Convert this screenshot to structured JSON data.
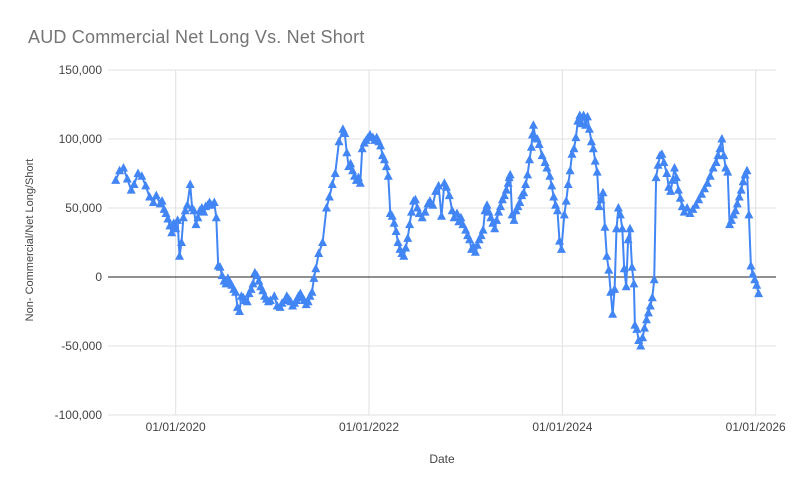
{
  "chart": {
    "title": "AUD Commercial Net Long Vs. Net Short",
    "xlabel": "Date",
    "ylabel": "Non- Commercial/Net Long/Short"
  },
  "colors": {
    "background": "#ffffff",
    "title": "#757575",
    "axis_label": "#444444",
    "grid": "#e0e0e0",
    "zero_line": "#212121",
    "series": "#4285f4"
  },
  "chart_data": {
    "type": "line",
    "marker": "triangle-up",
    "series_name": "Non-Commercial Net Long/Short",
    "series_color": "#4285f4",
    "title": "AUD Commercial Net Long Vs. Net Short",
    "xlabel": "Date",
    "ylabel": "Non- Commercial/Net Long/Short",
    "x_unit": "decimal_year",
    "grid": true,
    "legend": "none",
    "xlim": [
      2019.3,
      2026.21
    ],
    "ylim": [
      -100000,
      150000
    ],
    "x_ticks": [
      {
        "value": 2020,
        "label": "01/01/2020"
      },
      {
        "value": 2022,
        "label": "01/01/2022"
      },
      {
        "value": 2024,
        "label": "01/01/2024"
      },
      {
        "value": 2026,
        "label": "01/01/2026"
      }
    ],
    "y_ticks": [
      {
        "value": 150000,
        "label": "150,000"
      },
      {
        "value": 100000,
        "label": "100,000"
      },
      {
        "value": 50000,
        "label": "50,000"
      },
      {
        "value": 0,
        "label": "0"
      },
      {
        "value": -50000,
        "label": "-50,000"
      },
      {
        "value": -100000,
        "label": "-100,000"
      }
    ],
    "points": [
      [
        2019.38,
        70000
      ],
      [
        2019.42,
        77000
      ],
      [
        2019.46,
        79000
      ],
      [
        2019.5,
        71000
      ],
      [
        2019.54,
        63000
      ],
      [
        2019.57,
        67000
      ],
      [
        2019.61,
        75000
      ],
      [
        2019.65,
        73000
      ],
      [
        2019.69,
        66000
      ],
      [
        2019.73,
        58000
      ],
      [
        2019.77,
        54000
      ],
      [
        2019.8,
        59000
      ],
      [
        2019.84,
        53000
      ],
      [
        2019.86,
        55000
      ],
      [
        2019.88,
        49000
      ],
      [
        2019.9,
        46000
      ],
      [
        2019.92,
        42000
      ],
      [
        2019.94,
        37000
      ],
      [
        2019.96,
        32000
      ],
      [
        2019.98,
        39000
      ],
      [
        2020.0,
        35000
      ],
      [
        2020.02,
        41000
      ],
      [
        2020.04,
        15000
      ],
      [
        2020.06,
        25000
      ],
      [
        2020.08,
        43000
      ],
      [
        2020.1,
        48000
      ],
      [
        2020.12,
        52000
      ],
      [
        2020.15,
        67000
      ],
      [
        2020.17,
        50000
      ],
      [
        2020.19,
        48000
      ],
      [
        2020.21,
        38000
      ],
      [
        2020.23,
        43000
      ],
      [
        2020.25,
        48000
      ],
      [
        2020.27,
        50000
      ],
      [
        2020.29,
        47000
      ],
      [
        2020.31,
        51000
      ],
      [
        2020.33,
        52000
      ],
      [
        2020.35,
        54000
      ],
      [
        2020.37,
        52000
      ],
      [
        2020.4,
        54000
      ],
      [
        2020.42,
        43000
      ],
      [
        2020.44,
        8000
      ],
      [
        2020.46,
        7000
      ],
      [
        2020.48,
        1000
      ],
      [
        2020.5,
        -3000
      ],
      [
        2020.52,
        -5000
      ],
      [
        2020.54,
        -1000
      ],
      [
        2020.56,
        -4000
      ],
      [
        2020.58,
        -6000
      ],
      [
        2020.6,
        -9000
      ],
      [
        2020.62,
        -11000
      ],
      [
        2020.64,
        -22000
      ],
      [
        2020.66,
        -25000
      ],
      [
        2020.68,
        -14000
      ],
      [
        2020.7,
        -15000
      ],
      [
        2020.72,
        -17000
      ],
      [
        2020.74,
        -18000
      ],
      [
        2020.76,
        -12000
      ],
      [
        2020.78,
        -9000
      ],
      [
        2020.8,
        -5000
      ],
      [
        2020.82,
        3000
      ],
      [
        2020.84,
        1000
      ],
      [
        2020.86,
        -3000
      ],
      [
        2020.88,
        -7000
      ],
      [
        2020.9,
        -10000
      ],
      [
        2020.92,
        -14000
      ],
      [
        2020.94,
        -16000
      ],
      [
        2020.96,
        -18000
      ],
      [
        2020.98,
        -17000
      ],
      [
        2021.02,
        -14000
      ],
      [
        2021.05,
        -21000
      ],
      [
        2021.08,
        -22000
      ],
      [
        2021.1,
        -19000
      ],
      [
        2021.13,
        -17000
      ],
      [
        2021.15,
        -14000
      ],
      [
        2021.17,
        -16000
      ],
      [
        2021.19,
        -18000
      ],
      [
        2021.21,
        -21000
      ],
      [
        2021.23,
        -19000
      ],
      [
        2021.25,
        -17000
      ],
      [
        2021.27,
        -14000
      ],
      [
        2021.29,
        -12000
      ],
      [
        2021.31,
        -15000
      ],
      [
        2021.33,
        -17000
      ],
      [
        2021.35,
        -20000
      ],
      [
        2021.37,
        -18000
      ],
      [
        2021.39,
        -14000
      ],
      [
        2021.41,
        -11000
      ],
      [
        2021.43,
        -1000
      ],
      [
        2021.45,
        6000
      ],
      [
        2021.48,
        17000
      ],
      [
        2021.52,
        25000
      ],
      [
        2021.56,
        50000
      ],
      [
        2021.59,
        58000
      ],
      [
        2021.62,
        67000
      ],
      [
        2021.65,
        75000
      ],
      [
        2021.69,
        98000
      ],
      [
        2021.73,
        107000
      ],
      [
        2021.75,
        104000
      ],
      [
        2021.77,
        90000
      ],
      [
        2021.79,
        80000
      ],
      [
        2021.81,
        82000
      ],
      [
        2021.83,
        77000
      ],
      [
        2021.85,
        73000
      ],
      [
        2021.87,
        70000
      ],
      [
        2021.89,
        72000
      ],
      [
        2021.91,
        68000
      ],
      [
        2021.93,
        93000
      ],
      [
        2021.95,
        97000
      ],
      [
        2021.97,
        99000
      ],
      [
        2021.99,
        101000
      ],
      [
        2022.01,
        103000
      ],
      [
        2022.04,
        101000
      ],
      [
        2022.06,
        99000
      ],
      [
        2022.08,
        101000
      ],
      [
        2022.1,
        98000
      ],
      [
        2022.12,
        95000
      ],
      [
        2022.14,
        88000
      ],
      [
        2022.16,
        85000
      ],
      [
        2022.18,
        80000
      ],
      [
        2022.2,
        73000
      ],
      [
        2022.22,
        46000
      ],
      [
        2022.24,
        44000
      ],
      [
        2022.26,
        39000
      ],
      [
        2022.28,
        33000
      ],
      [
        2022.3,
        25000
      ],
      [
        2022.32,
        20000
      ],
      [
        2022.34,
        17000
      ],
      [
        2022.36,
        15000
      ],
      [
        2022.38,
        21000
      ],
      [
        2022.4,
        28000
      ],
      [
        2022.42,
        38000
      ],
      [
        2022.44,
        47000
      ],
      [
        2022.46,
        55000
      ],
      [
        2022.48,
        56000
      ],
      [
        2022.5,
        50000
      ],
      [
        2022.52,
        46000
      ],
      [
        2022.55,
        43000
      ],
      [
        2022.58,
        47000
      ],
      [
        2022.61,
        53000
      ],
      [
        2022.63,
        55000
      ],
      [
        2022.66,
        52000
      ],
      [
        2022.69,
        62000
      ],
      [
        2022.72,
        66000
      ],
      [
        2022.75,
        44000
      ],
      [
        2022.78,
        68000
      ],
      [
        2022.8,
        65000
      ],
      [
        2022.83,
        59000
      ],
      [
        2022.86,
        48000
      ],
      [
        2022.88,
        43000
      ],
      [
        2022.91,
        46000
      ],
      [
        2022.93,
        40000
      ],
      [
        2022.95,
        43000
      ],
      [
        2022.97,
        38000
      ],
      [
        2023.0,
        34000
      ],
      [
        2023.02,
        30000
      ],
      [
        2023.04,
        27000
      ],
      [
        2023.06,
        20000
      ],
      [
        2023.08,
        22000
      ],
      [
        2023.1,
        18000
      ],
      [
        2023.12,
        23000
      ],
      [
        2023.14,
        27000
      ],
      [
        2023.16,
        30000
      ],
      [
        2023.18,
        34000
      ],
      [
        2023.2,
        48000
      ],
      [
        2023.22,
        52000
      ],
      [
        2023.24,
        47000
      ],
      [
        2023.26,
        43000
      ],
      [
        2023.28,
        39000
      ],
      [
        2023.3,
        35000
      ],
      [
        2023.32,
        41000
      ],
      [
        2023.34,
        47000
      ],
      [
        2023.36,
        51000
      ],
      [
        2023.38,
        56000
      ],
      [
        2023.4,
        59000
      ],
      [
        2023.42,
        63000
      ],
      [
        2023.44,
        68000
      ],
      [
        2023.45,
        72000
      ],
      [
        2023.46,
        74000
      ],
      [
        2023.48,
        45000
      ],
      [
        2023.5,
        41000
      ],
      [
        2023.52,
        48000
      ],
      [
        2023.54,
        51000
      ],
      [
        2023.56,
        54000
      ],
      [
        2023.58,
        59000
      ],
      [
        2023.6,
        61000
      ],
      [
        2023.62,
        67000
      ],
      [
        2023.64,
        74000
      ],
      [
        2023.66,
        85000
      ],
      [
        2023.68,
        94000
      ],
      [
        2023.69,
        103000
      ],
      [
        2023.7,
        110000
      ],
      [
        2023.72,
        101000
      ],
      [
        2023.74,
        100000
      ],
      [
        2023.76,
        96000
      ],
      [
        2023.79,
        88000
      ],
      [
        2023.82,
        83000
      ],
      [
        2023.84,
        79000
      ],
      [
        2023.87,
        73000
      ],
      [
        2023.89,
        66000
      ],
      [
        2023.91,
        58000
      ],
      [
        2023.93,
        52000
      ],
      [
        2023.95,
        48000
      ],
      [
        2023.97,
        26000
      ],
      [
        2023.99,
        20000
      ],
      [
        2024.02,
        45000
      ],
      [
        2024.04,
        55000
      ],
      [
        2024.06,
        67000
      ],
      [
        2024.08,
        77000
      ],
      [
        2024.1,
        89000
      ],
      [
        2024.12,
        93000
      ],
      [
        2024.14,
        101000
      ],
      [
        2024.16,
        113000
      ],
      [
        2024.18,
        117000
      ],
      [
        2024.2,
        111000
      ],
      [
        2024.22,
        117000
      ],
      [
        2024.24,
        110000
      ],
      [
        2024.26,
        116000
      ],
      [
        2024.28,
        107000
      ],
      [
        2024.3,
        98000
      ],
      [
        2024.32,
        93000
      ],
      [
        2024.34,
        84000
      ],
      [
        2024.36,
        76000
      ],
      [
        2024.38,
        51000
      ],
      [
        2024.4,
        56000
      ],
      [
        2024.42,
        61000
      ],
      [
        2024.44,
        36000
      ],
      [
        2024.46,
        15000
      ],
      [
        2024.48,
        5000
      ],
      [
        2024.5,
        -11000
      ],
      [
        2024.52,
        -27000
      ],
      [
        2024.54,
        -9000
      ],
      [
        2024.56,
        35000
      ],
      [
        2024.58,
        50000
      ],
      [
        2024.6,
        45000
      ],
      [
        2024.62,
        35000
      ],
      [
        2024.64,
        6000
      ],
      [
        2024.66,
        -7000
      ],
      [
        2024.68,
        27000
      ],
      [
        2024.7,
        35000
      ],
      [
        2024.72,
        7000
      ],
      [
        2024.74,
        -5000
      ],
      [
        2024.75,
        -35000
      ],
      [
        2024.77,
        -38000
      ],
      [
        2024.79,
        -46000
      ],
      [
        2024.81,
        -50000
      ],
      [
        2024.83,
        -44000
      ],
      [
        2024.85,
        -37000
      ],
      [
        2024.87,
        -31000
      ],
      [
        2024.89,
        -26000
      ],
      [
        2024.91,
        -21000
      ],
      [
        2024.93,
        -15000
      ],
      [
        2024.95,
        -2000
      ],
      [
        2024.97,
        72000
      ],
      [
        2024.99,
        81000
      ],
      [
        2025.01,
        88000
      ],
      [
        2025.03,
        89000
      ],
      [
        2025.05,
        83000
      ],
      [
        2025.08,
        75000
      ],
      [
        2025.1,
        65000
      ],
      [
        2025.12,
        62000
      ],
      [
        2025.14,
        70000
      ],
      [
        2025.16,
        79000
      ],
      [
        2025.18,
        72000
      ],
      [
        2025.2,
        63000
      ],
      [
        2025.22,
        57000
      ],
      [
        2025.24,
        51000
      ],
      [
        2025.26,
        47000
      ],
      [
        2025.29,
        50000
      ],
      [
        2025.32,
        46000
      ],
      [
        2025.35,
        49000
      ],
      [
        2025.38,
        52000
      ],
      [
        2025.41,
        56000
      ],
      [
        2025.44,
        60000
      ],
      [
        2025.47,
        64000
      ],
      [
        2025.5,
        68000
      ],
      [
        2025.53,
        73000
      ],
      [
        2025.56,
        79000
      ],
      [
        2025.59,
        83000
      ],
      [
        2025.61,
        88000
      ],
      [
        2025.63,
        93000
      ],
      [
        2025.65,
        100000
      ],
      [
        2025.67,
        88000
      ],
      [
        2025.69,
        79000
      ],
      [
        2025.71,
        76000
      ],
      [
        2025.73,
        38000
      ],
      [
        2025.75,
        41000
      ],
      [
        2025.77,
        45000
      ],
      [
        2025.79,
        48000
      ],
      [
        2025.81,
        53000
      ],
      [
        2025.83,
        58000
      ],
      [
        2025.85,
        63000
      ],
      [
        2025.87,
        69000
      ],
      [
        2025.89,
        74000
      ],
      [
        2025.91,
        77000
      ],
      [
        2025.93,
        45000
      ],
      [
        2025.95,
        8000
      ],
      [
        2025.97,
        2000
      ],
      [
        2025.99,
        -2000
      ],
      [
        2026.01,
        -6000
      ],
      [
        2026.03,
        -12000
      ]
    ]
  }
}
